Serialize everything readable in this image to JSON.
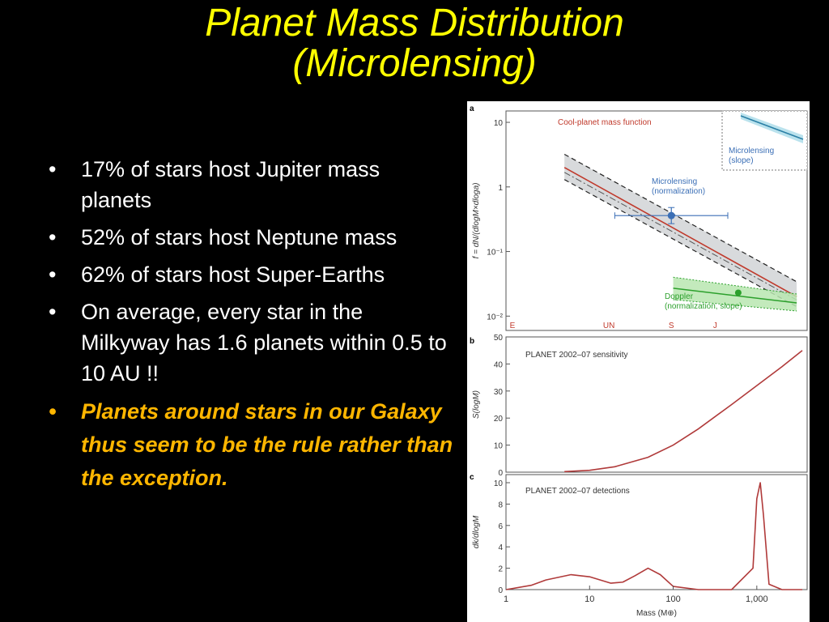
{
  "slide": {
    "title_line1": "Planet  Mass  Distribution",
    "title_line2": "(Microlensing)",
    "bullets": [
      "17% of stars host  Jupiter mass planets",
      " 52% of stars host Neptune mass",
      "62% of stars host Super-Earths",
      "On average, every star in the Milkyway has 1.6 planets within 0.5 to 10 AU !!"
    ],
    "conclusion": "Planets around stars in our Galaxy thus seem to be the rule rather than the exception.",
    "colors": {
      "title": "#ffff00",
      "text": "#ffffff",
      "conclusion": "#ffb600",
      "background": "#000000"
    }
  },
  "chart_data": [
    {
      "panel": "a",
      "type": "line",
      "ylabel": "f = dN/(dlogM×dloga)",
      "yscale": "log",
      "ylim": [
        0.006,
        15
      ],
      "xscale": "log",
      "xlim": [
        1,
        4000
      ],
      "yticks": [
        "10",
        "1",
        "10⁻¹",
        "10⁻²"
      ],
      "planet_markers": [
        "E",
        "UN",
        "S",
        "J"
      ],
      "legend_label": "Cool-planet mass function",
      "annotations": [
        "Microlensing\n(normalization)",
        "Doppler\n(normalization, slope)",
        "Microlensing\n(slope)"
      ],
      "series": [
        {
          "name": "Cool-planet mass function",
          "color": "#c0392b",
          "x": [
            5,
            3000
          ],
          "y": [
            2.0,
            0.02
          ],
          "band": [
            [
              3.2,
              0.034
            ],
            [
              1.3,
              0.014
            ]
          ]
        },
        {
          "name": "Doppler",
          "color": "#2ca02c",
          "x": [
            100,
            3000
          ],
          "y": [
            0.027,
            0.016
          ],
          "band": [
            [
              0.04,
              0.022
            ],
            [
              0.018,
              0.012
            ]
          ]
        }
      ],
      "points": [
        {
          "name": "Microlensing",
          "x": 95,
          "y": 0.36,
          "xerr": [
            20,
            450
          ],
          "yerr": [
            0.27,
            0.48
          ],
          "color": "#3b6fb6"
        },
        {
          "name": "Doppler",
          "x": 600,
          "y": 0.023,
          "color": "#2ca02c"
        }
      ]
    },
    {
      "panel": "b",
      "type": "line",
      "ylabel": "S(logM)",
      "ylim": [
        0,
        50
      ],
      "yticks": [
        "0",
        "10",
        "20",
        "30",
        "40",
        "50"
      ],
      "legend_label": "PLANET 2002–07 sensitivity",
      "series": [
        {
          "name": "PLANET 2002–07 sensitivity",
          "color": "#b03a3a",
          "x": [
            5,
            10,
            20,
            50,
            100,
            200,
            500,
            1000,
            2000,
            3500
          ],
          "y": [
            0.2,
            0.7,
            2,
            5.5,
            10,
            16,
            25,
            32,
            39,
            45
          ]
        }
      ]
    },
    {
      "panel": "c",
      "type": "line",
      "xlabel": "Mass (M⊕)",
      "ylabel": "dk/dlogM",
      "ylim": [
        0,
        10
      ],
      "yticks": [
        "0",
        "2",
        "4",
        "6",
        "8",
        "10"
      ],
      "xticks": [
        "1",
        "10",
        "100",
        "1,000"
      ],
      "legend_label": "PLANET 2002–07 detections",
      "series": [
        {
          "name": "PLANET 2002–07 detections",
          "color": "#b03a3a",
          "x": [
            1,
            2,
            3,
            6,
            10,
            18,
            25,
            35,
            50,
            70,
            100,
            200,
            500,
            900,
            1000,
            1100,
            1200,
            1400,
            2000,
            3500
          ],
          "y": [
            0,
            0.4,
            0.9,
            1.4,
            1.2,
            0.6,
            0.7,
            1.3,
            2.0,
            1.4,
            0.3,
            0,
            0,
            2.0,
            8.5,
            10,
            7.0,
            0.5,
            0,
            0
          ]
        }
      ]
    }
  ]
}
